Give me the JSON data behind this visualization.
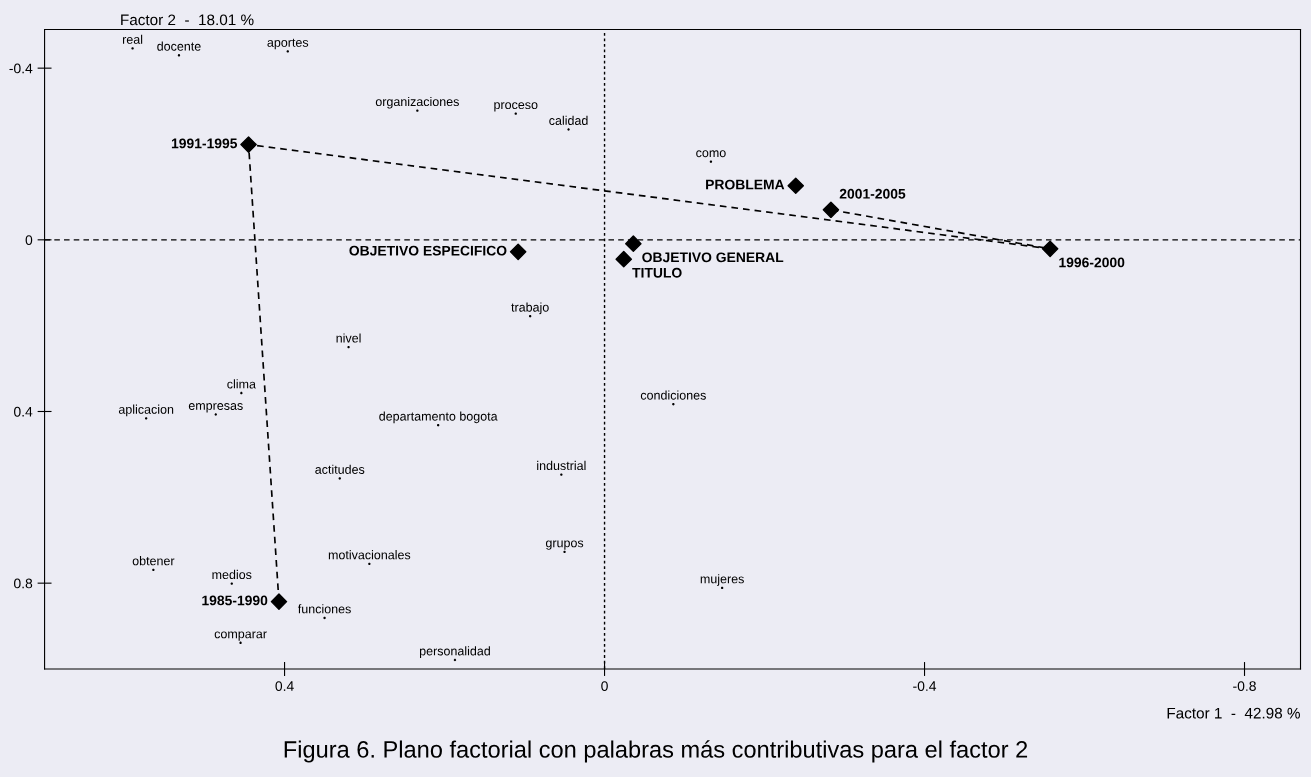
{
  "chart_data": {
    "type": "scatter",
    "title": "Figura 6. Plano factorial con palabras más contributivas para el factor 2",
    "xlabel": "Factor 1  -  42.98 %",
    "ylabel": "Factor 2  -  18.01 %",
    "xlim": [
      0.7,
      -0.87
    ],
    "ylim": [
      1.0,
      -0.49
    ],
    "xticks": [
      0.4,
      0,
      -0.4,
      -0.8
    ],
    "yticks": [
      -0.4,
      0,
      0.4,
      0.8
    ],
    "grid": false,
    "legend": false,
    "series": [
      {
        "type": "line",
        "line_style": "dashed",
        "marker": "none",
        "color": "#000000",
        "x": [
          0.407,
          0.445,
          -0.557,
          -0.283
        ],
        "values": [
          0.843,
          -0.222,
          0.021,
          -0.07
        ]
      },
      {
        "marker": "diamond",
        "color": "#000000",
        "x": [
          0.445,
          0.108,
          -0.036,
          -0.024,
          -0.239,
          -0.283,
          -0.557,
          0.407
        ],
        "values": [
          -0.222,
          0.028,
          0.009,
          0.045,
          -0.126,
          -0.07,
          0.021,
          0.843
        ],
        "value_labels": [
          "1991-1995",
          "OBJETIVO ESPECIFICO",
          "OBJETIVO GENERAL",
          "TITULO",
          "PROBLEMA",
          "2001-2005",
          "1996-2000",
          "1985-1990"
        ]
      },
      {
        "marker": "none",
        "color": "#000000",
        "x": [
          0.59,
          0.532,
          0.396,
          0.234,
          0.111,
          0.045,
          0.093,
          0.32,
          0.454,
          0.573,
          0.486,
          0.208,
          0.331,
          0.054,
          0.05,
          0.294,
          0.564,
          0.466,
          0.35,
          0.455,
          0.187,
          -0.133,
          -0.086,
          -0.147
        ],
        "values": [
          -0.446,
          -0.43,
          -0.439,
          -0.301,
          -0.294,
          -0.257,
          0.178,
          0.25,
          0.357,
          0.416,
          0.407,
          0.432,
          0.556,
          0.547,
          0.727,
          0.755,
          0.769,
          0.801,
          0.881,
          0.939,
          0.979,
          -0.182,
          0.383,
          0.811
        ],
        "value_labels": [
          "real",
          "docente",
          "aportes",
          "organizaciones",
          "proceso",
          "calidad",
          "trabajo",
          "nivel",
          "clima",
          "aplicacion",
          "empresas",
          "departamento bogota",
          "actitudes",
          "industrial",
          "grupos",
          "motivacionales",
          "obtener",
          "medios",
          "funciones",
          "comparar",
          "personalidad",
          "como",
          "condiciones",
          "mujeres"
        ]
      }
    ],
    "ref_lines": [
      {
        "axis": "x",
        "value": 0,
        "color": "#000000",
        "line_style": "dotted"
      },
      {
        "axis": "y",
        "value": 0,
        "color": "#000000",
        "line_style": "dashed"
      }
    ]
  }
}
